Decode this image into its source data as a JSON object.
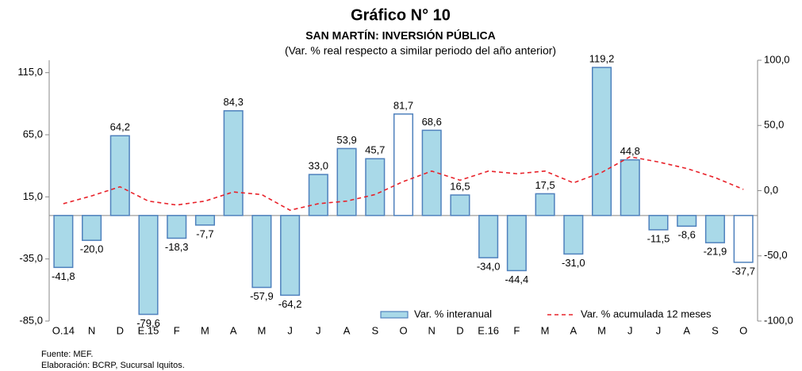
{
  "chart_data": {
    "type": "bar",
    "title": "Gráfico N° 10",
    "subtitle": "SAN MARTÍN: INVERSIÓN PÚBLICA",
    "subtitle2": "(Var. % real respecto a similar periodo del año anterior)",
    "source": "Fuente: MEF.",
    "credit": "Elaboración: BCRP, Sucursal Iquitos.",
    "categories": [
      "O.14",
      "N",
      "D",
      "E.15",
      "F",
      "M",
      "A",
      "M",
      "J",
      "J",
      "A",
      "S",
      "O",
      "N",
      "D",
      "E.16",
      "F",
      "M",
      "A",
      "M",
      "J",
      "J",
      "A",
      "S",
      "O"
    ],
    "series": [
      {
        "name": "Var. % interanual",
        "type": "bar",
        "color": "#a9d9e8",
        "edge": "#4f81bd",
        "colors": [
          "#a9d9e8",
          "#a9d9e8",
          "#a9d9e8",
          "#a9d9e8",
          "#a9d9e8",
          "#a9d9e8",
          "#a9d9e8",
          "#a9d9e8",
          "#a9d9e8",
          "#a9d9e8",
          "#a9d9e8",
          "#a9d9e8",
          "#ffffff",
          "#a9d9e8",
          "#a9d9e8",
          "#a9d9e8",
          "#a9d9e8",
          "#a9d9e8",
          "#a9d9e8",
          "#a9d9e8",
          "#a9d9e8",
          "#a9d9e8",
          "#a9d9e8",
          "#a9d9e8",
          "#ffffff"
        ],
        "values": [
          -41.8,
          -20.0,
          64.2,
          -79.6,
          -18.3,
          -7.7,
          84.3,
          -57.9,
          -64.2,
          33.0,
          53.9,
          45.7,
          81.7,
          68.6,
          16.5,
          -34.0,
          -44.4,
          17.5,
          -31.0,
          119.2,
          44.8,
          -11.5,
          -8.6,
          -21.9,
          -37.7
        ],
        "value_labels": [
          "-41,8",
          "-20,0",
          "64,2",
          "-79,6",
          "-18,3",
          "-7,7",
          "84,3",
          "-57,9",
          "-64,2",
          "33,0",
          "53,9",
          "45,7",
          "81,7",
          "68,6",
          "16,5",
          "-34,0",
          "-44,4",
          "17,5",
          "-31,0",
          "119,2",
          "44,8",
          "-11,5",
          "-8,6",
          "-21,9",
          "-37,7"
        ]
      },
      {
        "name": "Var. % acumulada 12 meses",
        "type": "line",
        "axis": "y2",
        "color": "#e8222a",
        "dashed": true,
        "values": [
          -10,
          -4,
          3,
          -8,
          -11,
          -8,
          -1,
          -3,
          -15,
          -10,
          -8,
          -3,
          7,
          15,
          8,
          15,
          13,
          15,
          6,
          14,
          26,
          22,
          17,
          10,
          1
        ]
      }
    ],
    "ylim": [
      -85,
      125
    ],
    "yticks": [
      {
        "value": -85,
        "label": "-85,0"
      },
      {
        "value": -35,
        "label": "-35,0"
      },
      {
        "value": 15,
        "label": "15,0"
      },
      {
        "value": 65,
        "label": "65,0"
      },
      {
        "value": 115,
        "label": "115,0"
      }
    ],
    "y2lim": [
      -100,
      100
    ],
    "y2ticks": [
      {
        "value": -100,
        "label": "-100,0"
      },
      {
        "value": -50,
        "label": "-50,0"
      },
      {
        "value": 0,
        "label": "0,0"
      },
      {
        "value": 50,
        "label": "50,0"
      },
      {
        "value": 100,
        "label": "100,0"
      }
    ],
    "grid": false,
    "legend": "bottom"
  }
}
